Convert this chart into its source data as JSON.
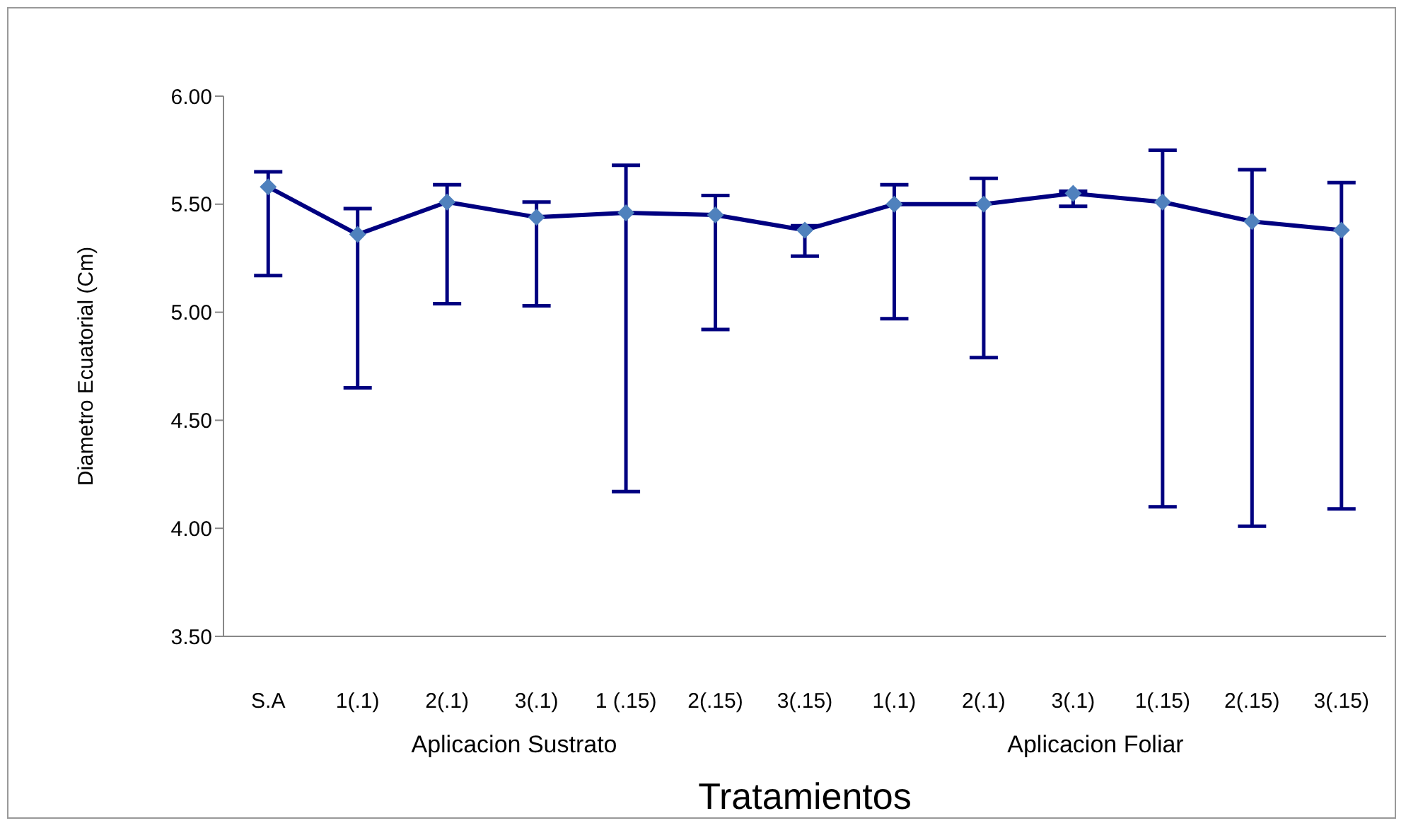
{
  "chart_data": {
    "type": "line",
    "xlabel": "Tratamientos",
    "ylabel": "Diametro Ecuatorial (Cm)",
    "categories": [
      "S.A",
      "1(.1)",
      "2(.1)",
      "3(.1)",
      "1 (.15)",
      "2(.15)",
      "3(.15)",
      "1(.1)",
      "2(.1)",
      "3(.1)",
      "1(.15)",
      "2(.15)",
      "3(.15)"
    ],
    "series": [
      {
        "color": "#000080",
        "colors": [
          "#4f81bd",
          "#4f81bd",
          "#4f81bd",
          "#4f81bd",
          "#4f81bd",
          "#4f81bd",
          "#4f81bd",
          "#4f81bd",
          "#4f81bd",
          "#4f81bd",
          "#4f81bd",
          "#4f81bd",
          "#4f81bd"
        ],
        "values": [
          5.58,
          5.36,
          5.51,
          5.44,
          5.46,
          5.45,
          5.38,
          5.5,
          5.5,
          5.55,
          5.51,
          5.42,
          5.38
        ],
        "errors": [
          [
            5.17,
            5.65
          ],
          [
            4.65,
            5.48
          ],
          [
            5.04,
            5.59
          ],
          [
            5.03,
            5.51
          ],
          [
            4.17,
            5.68
          ],
          [
            4.92,
            5.54
          ],
          [
            5.26,
            5.4
          ],
          [
            4.97,
            5.59
          ],
          [
            4.79,
            5.62
          ],
          [
            5.49,
            5.56
          ],
          [
            4.1,
            5.75
          ],
          [
            4.01,
            5.66
          ],
          [
            4.09,
            5.6
          ]
        ]
      }
    ],
    "ylim": [
      3.5,
      6
    ],
    "yticks": [
      {
        "value": 3.5,
        "label": "3.50"
      },
      {
        "value": 4,
        "label": "4.00"
      },
      {
        "value": 4.5,
        "label": "4.50"
      },
      {
        "value": 5,
        "label": "5.00"
      },
      {
        "value": 5.5,
        "label": "5.50"
      },
      {
        "value": 6,
        "label": "6.00"
      }
    ],
    "grid": false,
    "legend": false,
    "marker": "diamond",
    "line_style": "solid",
    "annotations": [
      "Aplicacion Sustrato",
      "Aplicacion Foliar"
    ]
  }
}
